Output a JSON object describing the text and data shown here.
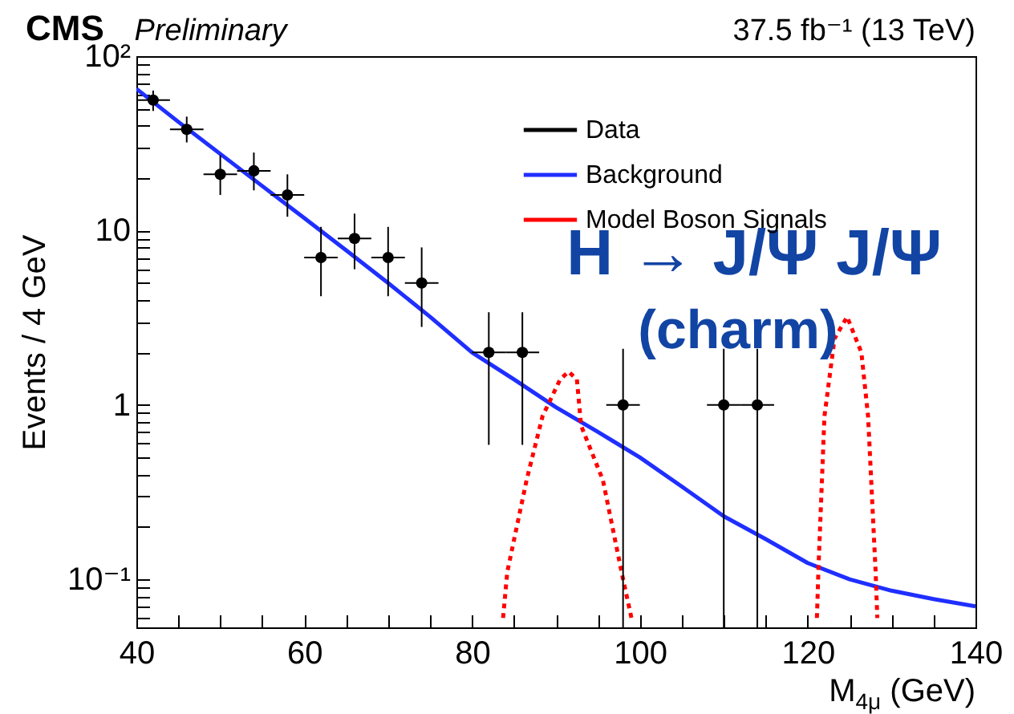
{
  "chart_data": {
    "type": "line",
    "title": "CMS",
    "subtitle": "Preliminary",
    "xlabel": "M$_{4μ}$ (GeV)",
    "ylabel": "Events / 4 GeV",
    "annotations": [
      "37.5 fb⁻¹ (13 TeV)",
      "H → J/Ψ J/Ψ",
      "(charm)"
    ],
    "log": true,
    "grid": false,
    "legend": "top right",
    "xlim": [
      40,
      140
    ],
    "xticks": [
      40,
      {
        "value": 45,
        "label": null
      },
      {
        "value": 50,
        "label": null
      },
      {
        "value": 55,
        "label": null
      },
      60,
      {
        "value": 65,
        "label": null
      },
      {
        "value": 70,
        "label": null
      },
      {
        "value": 75,
        "label": null
      },
      80,
      {
        "value": 85,
        "label": null
      },
      {
        "value": 90,
        "label": null
      },
      {
        "value": 95,
        "label": null
      },
      100,
      {
        "value": 105,
        "label": null
      },
      {
        "value": 110,
        "label": null
      },
      {
        "value": 115,
        "label": null
      },
      120,
      {
        "value": 125,
        "label": null
      },
      {
        "value": 130,
        "label": null
      },
      {
        "value": 135,
        "label": null
      },
      140
    ],
    "ylim": [
      0.053,
      100
    ],
    "yticks": [
      {
        "value": 0.06,
        "label": null
      },
      {
        "value": 0.07,
        "label": null
      },
      {
        "value": 0.08,
        "label": null
      },
      {
        "value": 0.09,
        "label": null
      },
      {
        "value": 0.1,
        "label": "10⁻¹"
      },
      {
        "value": 0.2,
        "label": null
      },
      {
        "value": 0.3,
        "label": null
      },
      {
        "value": 0.4,
        "label": null
      },
      {
        "value": 0.5,
        "label": null
      },
      {
        "value": 0.6,
        "label": null
      },
      {
        "value": 0.7,
        "label": null
      },
      {
        "value": 0.8,
        "label": null
      },
      {
        "value": 0.9,
        "label": null
      },
      1,
      {
        "value": 2,
        "label": null
      },
      {
        "value": 3,
        "label": null
      },
      {
        "value": 4,
        "label": null
      },
      {
        "value": 5,
        "label": null
      },
      {
        "value": 6,
        "label": null
      },
      {
        "value": 7,
        "label": null
      },
      {
        "value": 8,
        "label": null
      },
      {
        "value": 9,
        "label": null
      },
      10,
      {
        "value": 20,
        "label": null
      },
      {
        "value": 30,
        "label": null
      },
      {
        "value": 40,
        "label": null
      },
      {
        "value": 50,
        "label": null
      },
      {
        "value": 60,
        "label": null
      },
      {
        "value": 70,
        "label": null
      },
      {
        "value": 80,
        "label": null
      },
      {
        "value": 90,
        "label": null
      },
      {
        "value": 100,
        "label": "10²"
      }
    ],
    "series": [
      {
        "name": "Data",
        "type": "scatter",
        "marker": "circle",
        "color": "#000000",
        "x": [
          42,
          46,
          50,
          54,
          58,
          62,
          66,
          70,
          74,
          82,
          86,
          98,
          110,
          114
        ],
        "values": [
          56,
          38,
          21,
          22,
          16,
          7,
          9,
          7,
          5,
          2,
          2,
          1,
          1,
          1
        ],
        "errors": [
          [
            48.5,
            63.5
          ],
          [
            32,
            45
          ],
          [
            16,
            27
          ],
          [
            17,
            28
          ],
          [
            12,
            21
          ],
          [
            4.2,
            10.5
          ],
          [
            6,
            12.5
          ],
          [
            4.2,
            10.5
          ],
          [
            2.8,
            8
          ],
          [
            0.59,
            3.4
          ],
          [
            0.59,
            3.4
          ],
          [
            0.053,
            2.1
          ],
          [
            0.053,
            2.1
          ],
          [
            0.053,
            2.1
          ]
        ],
        "xerrors": [
          2,
          2,
          2,
          2,
          2,
          2,
          2,
          2,
          2,
          2,
          2,
          2,
          2,
          2
        ]
      },
      {
        "name": "Background",
        "color": "#1f2fff",
        "line_style": "solid",
        "x": [
          40,
          45,
          50,
          55,
          60,
          65,
          70,
          75,
          80,
          85,
          90,
          95,
          100,
          105,
          110,
          115,
          120,
          125,
          130,
          135,
          140
        ],
        "values": [
          65,
          42,
          27.5,
          18,
          11.8,
          7.7,
          5,
          3.2,
          2,
          1.4,
          0.97,
          0.7,
          0.5,
          0.34,
          0.23,
          0.17,
          0.124,
          0.1,
          0.086,
          0.077,
          0.07
        ]
      },
      {
        "name": "Model Boson Signals",
        "color": "#ff0000",
        "line_style": "dotted",
        "x": [
          83.7,
          84.2,
          86.5,
          88.4,
          90.5,
          91.5,
          92.5,
          93,
          95.6,
          98,
          99,
          110,
          121.1,
          121.3,
          122,
          123.2,
          124.7,
          126.4,
          127.2,
          128.1,
          128.3
        ],
        "values": [
          0.06,
          0.11,
          0.37,
          0.86,
          1.4,
          1.55,
          1.4,
          0.76,
          0.37,
          0.1,
          0.06,
          null,
          0.06,
          0.12,
          0.86,
          2.4,
          3.2,
          2.0,
          0.86,
          0.11,
          0.06
        ]
      }
    ]
  }
}
